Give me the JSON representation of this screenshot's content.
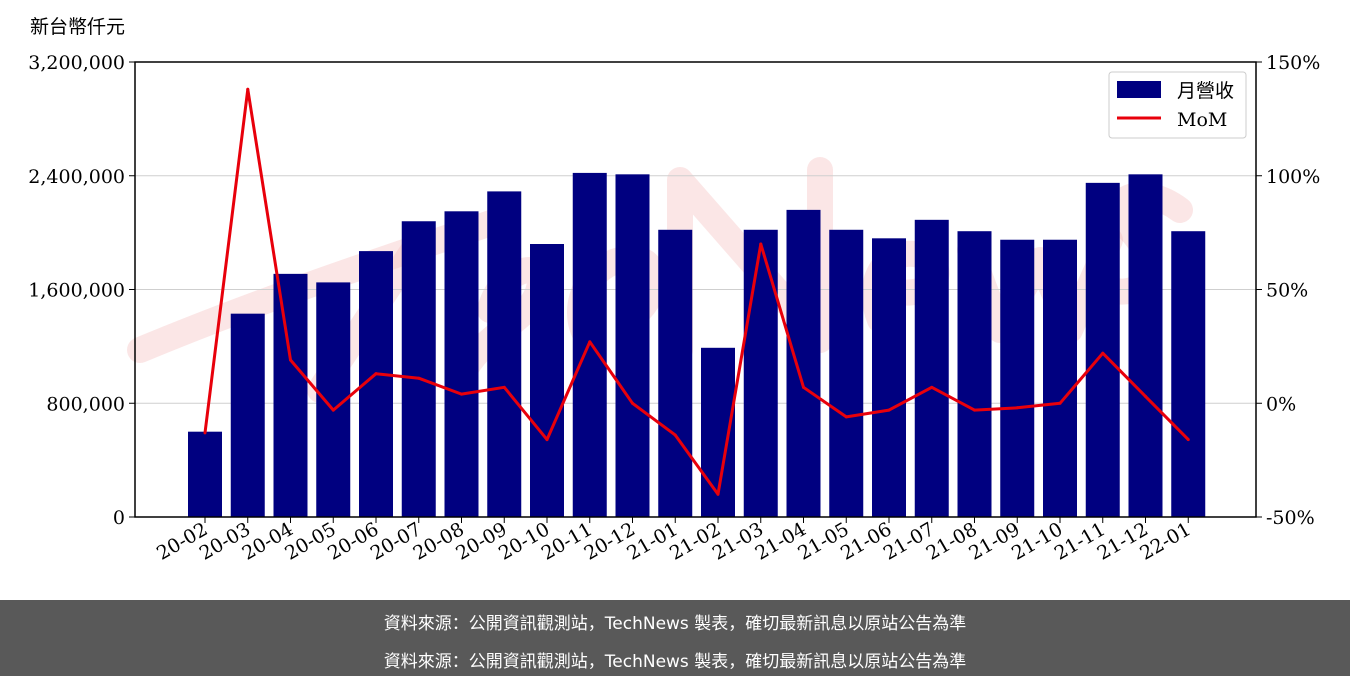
{
  "chart_data": {
    "type": "bar+line",
    "y_unit_label": "新台幣仟元",
    "categories": [
      "20-02",
      "20-03",
      "20-04",
      "20-05",
      "20-06",
      "20-07",
      "20-08",
      "20-09",
      "20-10",
      "20-11",
      "20-12",
      "21-01",
      "21-02",
      "21-03",
      "21-04",
      "21-05",
      "21-06",
      "21-07",
      "21-08",
      "21-09",
      "21-10",
      "21-11",
      "21-12",
      "22-01"
    ],
    "series": [
      {
        "name": "月營收",
        "type": "bar",
        "axis": "left",
        "color": "#000080",
        "values": [
          600000,
          1430000,
          1710000,
          1650000,
          1870000,
          2080000,
          2150000,
          2290000,
          1920000,
          2420000,
          2410000,
          2020000,
          1190000,
          2020000,
          2160000,
          2020000,
          1960000,
          2090000,
          2010000,
          1950000,
          1950000,
          2350000,
          2410000,
          2010000
        ]
      },
      {
        "name": "MoM",
        "type": "line",
        "axis": "right",
        "color": "#e8000b",
        "values": [
          -13,
          138,
          19,
          -3,
          13,
          11,
          4,
          7,
          -16,
          27,
          0,
          -14,
          -40,
          70,
          7,
          -6,
          -3,
          7,
          -3,
          -2,
          0,
          22,
          3,
          -16
        ]
      }
    ],
    "y_left": {
      "lim": [
        0,
        3200000
      ],
      "ticks": [
        0,
        800000,
        1600000,
        2400000,
        3200000
      ],
      "tick_labels": [
        "0",
        "800,000",
        "1,600,000",
        "2,400,000",
        "3,200,000"
      ]
    },
    "y_right": {
      "lim": [
        -50,
        150
      ],
      "ticks": [
        -50,
        0,
        50,
        100,
        150
      ],
      "tick_labels": [
        "-50%",
        "0%",
        "50%",
        "100%",
        "150%"
      ]
    },
    "grid": true,
    "legend_position": "top-right"
  },
  "watermark": {
    "text": "TechNews"
  },
  "footer": {
    "line1": "資料來源：公開資訊觀測站，TechNews 製表，確切最新訊息以原站公告為準",
    "line2": "資料來源：公開資訊觀測站，TechNews 製表，確切最新訊息以原站公告為準"
  }
}
